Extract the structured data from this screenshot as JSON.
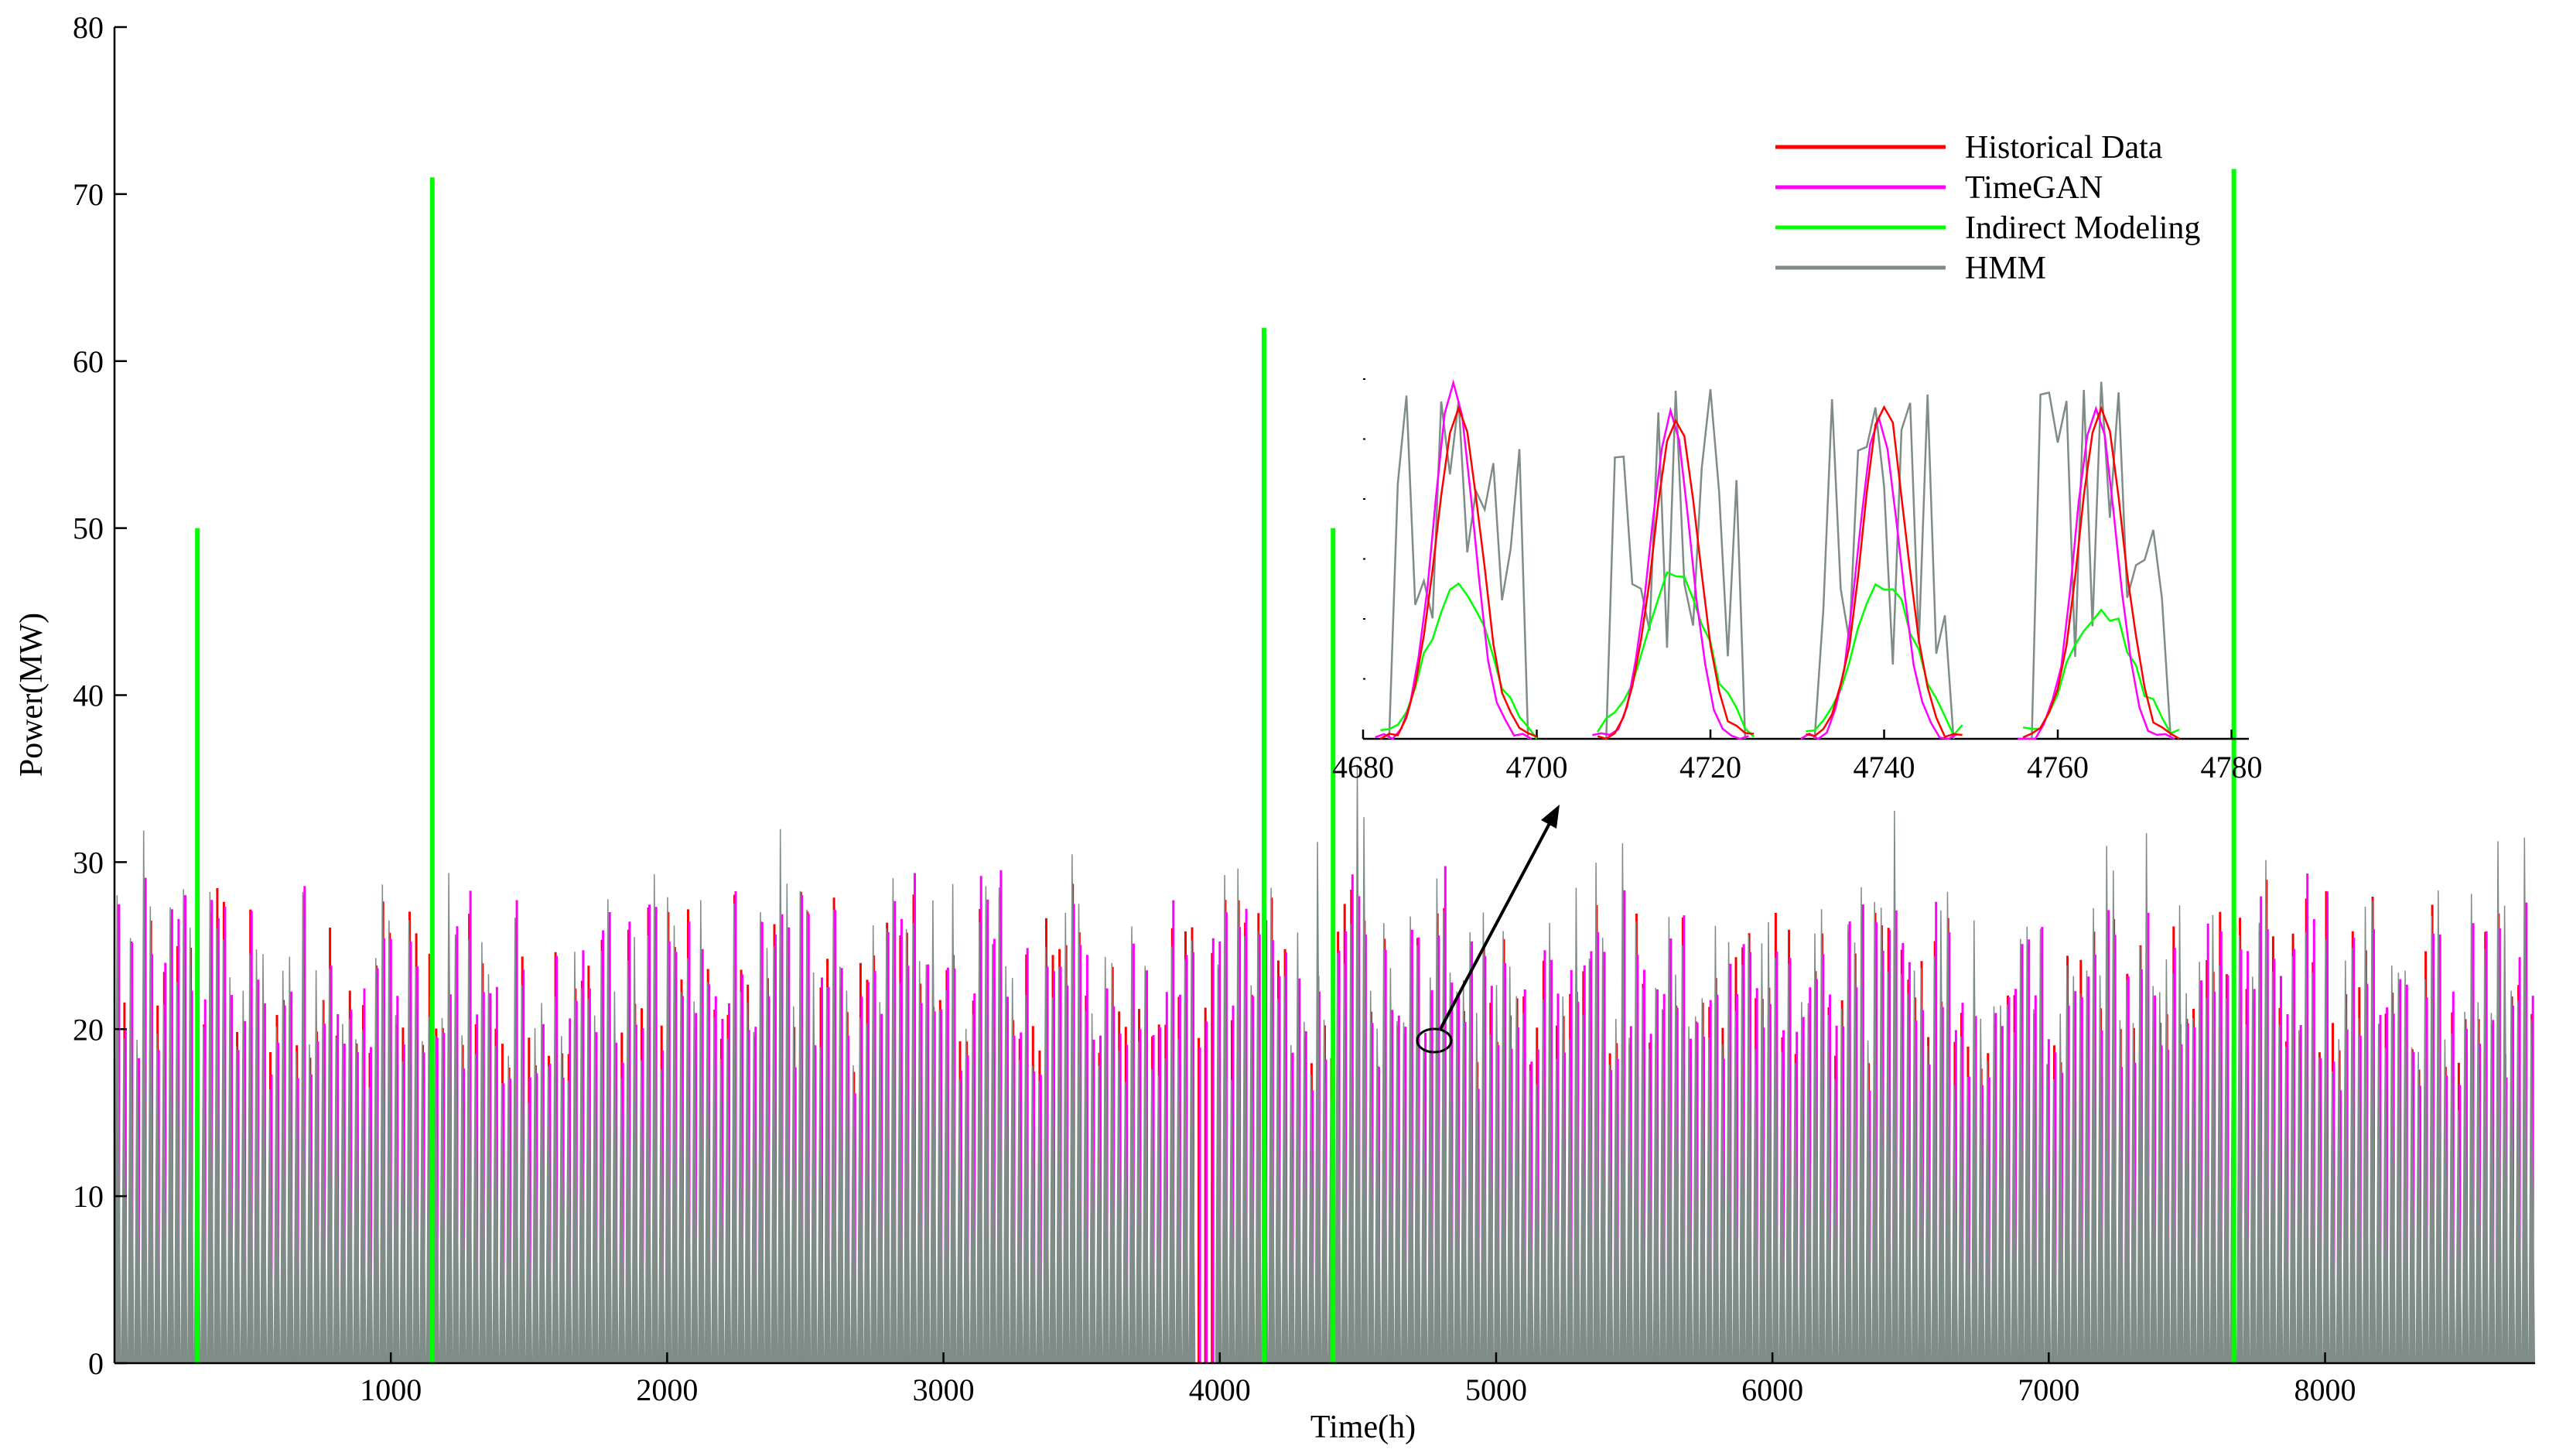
{
  "chart_data": {
    "type": "line",
    "title": "",
    "xlabel": "Time(h)",
    "ylabel": "Power(MW)",
    "xlim": [
      0,
      8760
    ],
    "ylim": [
      0,
      80
    ],
    "x_ticks": [
      1000,
      2000,
      3000,
      4000,
      5000,
      6000,
      7000,
      8000
    ],
    "y_ticks": [
      0,
      10,
      20,
      30,
      40,
      50,
      60,
      70,
      80
    ],
    "legend_position": "top-right",
    "series": [
      {
        "name": "Historical Data",
        "color": "#ff0000"
      },
      {
        "name": "TimeGAN",
        "color": "#ff00ff"
      },
      {
        "name": "Indirect Modeling",
        "color": "#00ff00"
      },
      {
        "name": "HMM",
        "color": "#7f8c87"
      }
    ],
    "description_values": {
      "typical_daily_peak_range": [
        17,
        29
      ],
      "indirect_modeling_spikes": [
        {
          "x": 300,
          "y": 50
        },
        {
          "x": 1150,
          "y": 71
        },
        {
          "x": 4160,
          "y": 62
        },
        {
          "x": 4410,
          "y": 50
        },
        {
          "x": 7670,
          "y": 71.5
        }
      ],
      "hmm_outage_near": 3950
    },
    "inset": {
      "xlim": [
        4680,
        4782
      ],
      "x_ticks": [
        4680,
        4700,
        4720,
        4740,
        4760,
        4780
      ],
      "pointer": "arrow from highlighted region near x=4760 to inset"
    }
  }
}
